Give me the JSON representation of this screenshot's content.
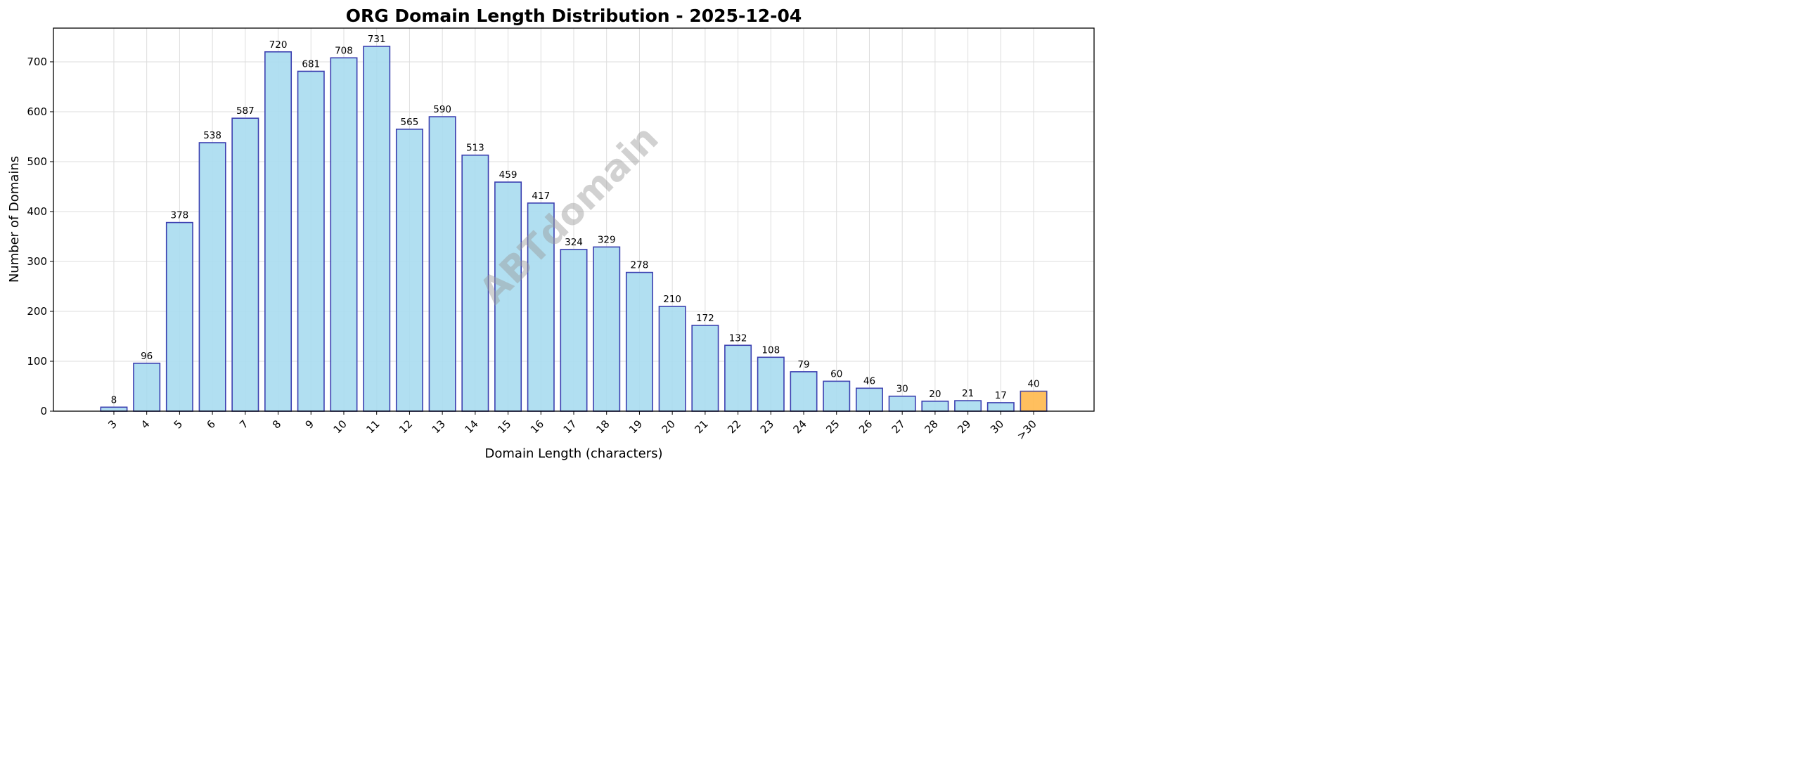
{
  "chart_data": {
    "type": "bar",
    "title": "ORG Domain Length Distribution - 2025-12-04",
    "xlabel": "Domain Length (characters)",
    "ylabel": "Number of Domains",
    "categories": [
      "3",
      "4",
      "5",
      "6",
      "7",
      "8",
      "9",
      "10",
      "11",
      "12",
      "13",
      "14",
      "15",
      "16",
      "17",
      "18",
      "19",
      "20",
      "21",
      "22",
      "23",
      "24",
      "25",
      "26",
      "27",
      "28",
      "29",
      "30",
      ">30"
    ],
    "values": [
      8,
      96,
      378,
      538,
      587,
      720,
      681,
      708,
      731,
      565,
      590,
      513,
      459,
      417,
      324,
      329,
      278,
      210,
      172,
      132,
      108,
      79,
      60,
      46,
      30,
      20,
      21,
      17,
      40
    ],
    "ylim": [
      0,
      767.55
    ],
    "yticks": [
      0,
      100,
      200,
      300,
      400,
      500,
      600,
      700
    ],
    "grid": true,
    "watermark": "ABTdomain",
    "colors": {
      "bar": "#a9dcef",
      "bar_edge": "#3b3fb0",
      "highlight_bar": "#ffb84d",
      "highlight_edge": "#4a4aa0"
    }
  }
}
